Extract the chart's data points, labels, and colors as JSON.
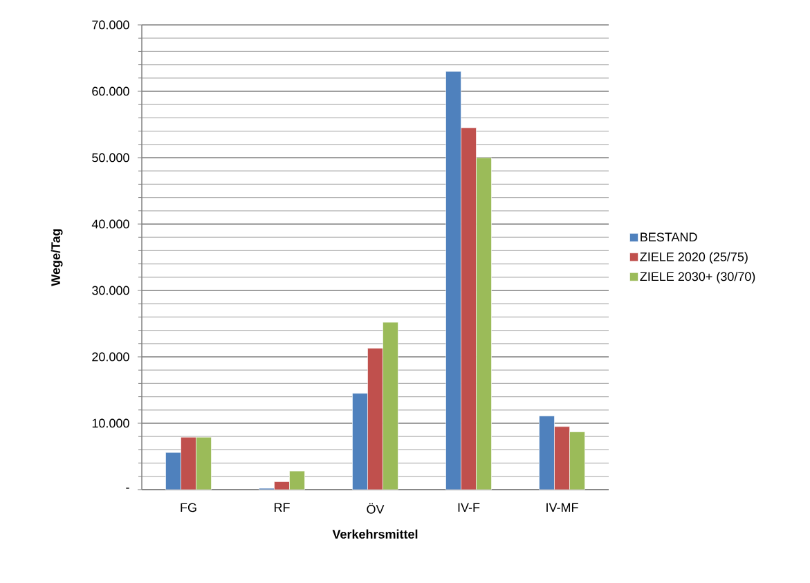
{
  "chart_data": {
    "type": "bar",
    "xlabel": "Verkehrsmittel",
    "ylabel": "Wege/Tag",
    "categories": [
      "FG",
      "RF",
      "ÖV",
      "IV-F",
      "IV-MF"
    ],
    "series": [
      {
        "name": "BESTAND",
        "color": "#4f81bd",
        "values": [
          5600,
          200,
          14500,
          63000,
          11100
        ]
      },
      {
        "name": "ZIELE 2020 (25/75)",
        "color": "#c0504d",
        "values": [
          7900,
          1200,
          21300,
          54500,
          9500
        ]
      },
      {
        "name": "ZIELE 2030+ (30/70)",
        "color": "#9bbb59",
        "values": [
          7900,
          2800,
          25200,
          50000,
          8700
        ]
      }
    ],
    "ylim": [
      0,
      70000
    ],
    "yticks": [
      {
        "value": 0,
        "label": "-"
      },
      {
        "value": 10000,
        "label": "10.000"
      },
      {
        "value": 20000,
        "label": "20.000"
      },
      {
        "value": 30000,
        "label": "30.000"
      },
      {
        "value": 40000,
        "label": "40.000"
      },
      {
        "value": 50000,
        "label": "50.000"
      },
      {
        "value": 60000,
        "label": "60.000"
      },
      {
        "value": 70000,
        "label": "70.000"
      }
    ],
    "grid": "y",
    "legend": "right"
  }
}
